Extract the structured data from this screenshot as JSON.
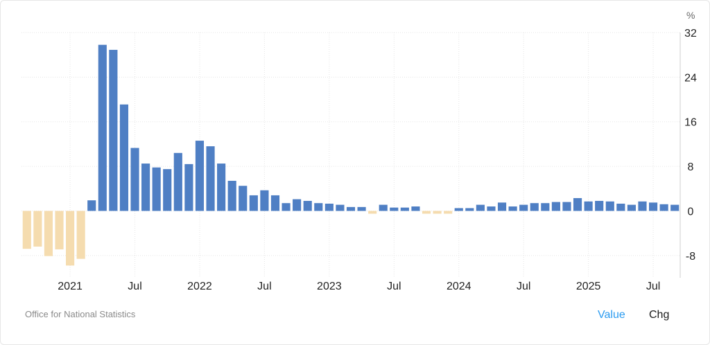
{
  "chart": {
    "unit_label": "%",
    "source": "Office for National Statistics",
    "toggles": {
      "value": "Value",
      "chg": "Chg"
    }
  },
  "colors": {
    "positive": "#4f7fc4",
    "negative": "#f5dcaf",
    "grid": "#e5e5e5"
  },
  "chart_data": {
    "type": "bar",
    "ylim": [
      -12,
      32
    ],
    "yticks": [
      32,
      24,
      16,
      8,
      0,
      -8
    ],
    "grid": true,
    "xtick_labels": [
      {
        "label": "2021",
        "index": 4.5
      },
      {
        "label": "Jul",
        "index": 10.5
      },
      {
        "label": "2022",
        "index": 16.5
      },
      {
        "label": "Jul",
        "index": 22.5
      },
      {
        "label": "2023",
        "index": 28.5
      },
      {
        "label": "Jul",
        "index": 34.5
      },
      {
        "label": "2024",
        "index": 40.5
      },
      {
        "label": "Jul",
        "index": 46.5
      },
      {
        "label": "2025",
        "index": 52.5
      },
      {
        "label": "Jul",
        "index": 58.5
      }
    ],
    "categories": [
      "2020-10",
      "2020-11",
      "2020-12",
      "2021-01",
      "2021-02",
      "2021-03",
      "2021-04",
      "2021-05",
      "2021-06",
      "2021-07",
      "2021-08",
      "2021-09",
      "2021-10",
      "2021-11",
      "2021-12",
      "2022-01",
      "2022-02",
      "2022-03",
      "2022-04",
      "2022-05",
      "2022-06",
      "2022-07",
      "2022-08",
      "2022-09",
      "2022-10",
      "2022-11",
      "2022-12",
      "2023-01",
      "2023-02",
      "2023-03",
      "2023-04",
      "2023-05",
      "2023-06",
      "2023-07",
      "2023-08",
      "2023-09",
      "2023-10",
      "2023-11",
      "2023-12",
      "2024-01",
      "2024-02",
      "2024-03",
      "2024-04",
      "2024-05",
      "2024-06",
      "2024-07",
      "2024-08",
      "2024-09",
      "2024-10",
      "2024-11",
      "2024-12",
      "2025-01",
      "2025-02",
      "2025-03",
      "2025-04",
      "2025-05",
      "2025-06",
      "2025-07",
      "2025-08",
      "2025-09",
      "2025-10"
    ],
    "values": [
      -6.8,
      -6.4,
      -8.1,
      -6.9,
      -9.8,
      -8.6,
      1.9,
      29.8,
      28.9,
      19.1,
      11.3,
      8.5,
      7.8,
      7.5,
      10.4,
      8.4,
      12.6,
      11.6,
      8.5,
      5.4,
      4.5,
      2.8,
      3.7,
      2.8,
      1.4,
      2.1,
      1.8,
      1.4,
      1.3,
      1.1,
      0.7,
      0.7,
      -0.5,
      1.1,
      0.6,
      0.6,
      0.8,
      -0.5,
      -0.5,
      -0.5,
      0.5,
      0.5,
      1.1,
      0.8,
      1.5,
      0.8,
      1.1,
      1.4,
      1.4,
      1.6,
      1.6,
      2.3,
      1.7,
      1.8,
      1.7,
      1.3,
      1.1,
      1.7,
      1.5,
      1.2,
      1.1
    ]
  }
}
